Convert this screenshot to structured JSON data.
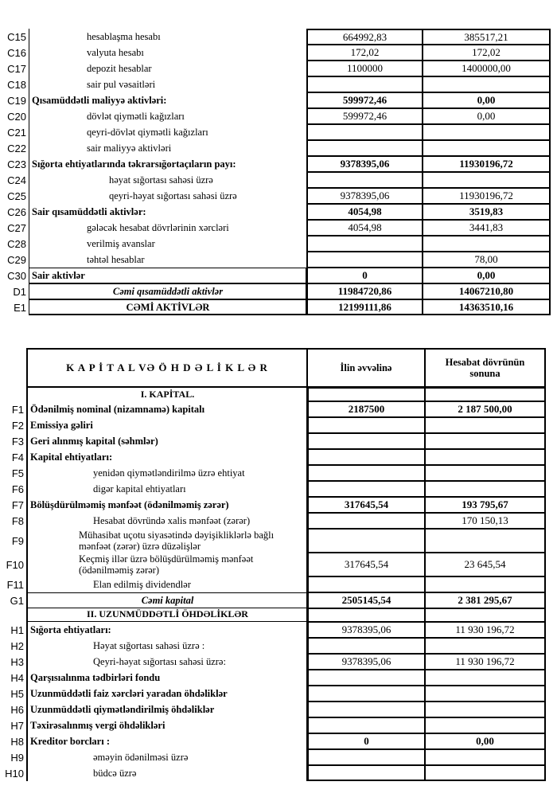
{
  "doc_type": "balance-sheet-fragment",
  "top_table": {
    "rows": [
      {
        "code": "C15",
        "label": "hesablaşma hesabı",
        "type": "sub",
        "v1": "664992,83",
        "v2": "385517,21",
        "vb": false
      },
      {
        "code": "C16",
        "label": "valyuta hesabı",
        "type": "sub",
        "v1": "172,02",
        "v2": "172,02",
        "vb": false
      },
      {
        "code": "C17",
        "label": "depozit hesablar",
        "type": "sub",
        "v1": "1100000",
        "v2": "1400000,00",
        "vb": false
      },
      {
        "code": "C18",
        "label": "sair pul vəsaitləri",
        "type": "sub",
        "v1": "",
        "v2": "",
        "vb": false
      },
      {
        "code": "C19",
        "label": "Qısamüddətli maliyyə aktivləri:",
        "type": "main",
        "v1": "599972,46",
        "v2": "0,00",
        "vb": true
      },
      {
        "code": "C20",
        "label": "dövlət qiymətli kağızları",
        "type": "sub",
        "v1": "599972,46",
        "v2": "0,00",
        "vb": false
      },
      {
        "code": "C21",
        "label": "qeyri-dövlət qiymətli kağızları",
        "type": "sub",
        "v1": "",
        "v2": "",
        "vb": false
      },
      {
        "code": "C22",
        "label": "sair maliyyə aktivləri",
        "type": "sub",
        "v1": "",
        "v2": "",
        "vb": false
      },
      {
        "code": "C23",
        "label": "Sığorta ehtiyatlarında təkrarsığortaçıların payı:",
        "type": "main",
        "v1": "9378395,06",
        "v2": "11930196,72",
        "vb": true
      },
      {
        "code": "C24",
        "label": "həyat sığortası sahəsi üzrə",
        "type": "sub2",
        "v1": "",
        "v2": "",
        "vb": false
      },
      {
        "code": "C25",
        "label": "qeyri-həyat sığortası sahəsi üzrə",
        "type": "sub2",
        "v1": "9378395,06",
        "v2": "11930196,72",
        "vb": false
      },
      {
        "code": "C26",
        "label": "Sair qısamüddətli aktivlər:",
        "type": "main",
        "v1": "4054,98",
        "v2": "3519,83",
        "vb": true
      },
      {
        "code": "C27",
        "label": "gələcək hesabat dövrlərinin xərcləri",
        "type": "sub",
        "v1": "4054,98",
        "v2": "3441,83",
        "vb": false
      },
      {
        "code": "C28",
        "label": "verilmiş avanslar",
        "type": "sub",
        "v1": "",
        "v2": "",
        "vb": false
      },
      {
        "code": "C29",
        "label": "təhtəl hesablar",
        "type": "sub",
        "v1": "",
        "v2": "78,00",
        "vb": false
      },
      {
        "code": "C30",
        "label": "Sair aktivlər",
        "type": "mainbox",
        "v1": "0",
        "v2": "0,00",
        "vb": true
      },
      {
        "code": "D1",
        "label": "Cəmi qısamüddətli aktivlər",
        "type": "totalbox",
        "v1": "11984720,86",
        "v2": "14067210,80",
        "vb": true
      },
      {
        "code": "E1",
        "label": "CƏMİ AKTİVLƏR",
        "type": "grandbox",
        "v1": "12199111,86",
        "v2": "14363510,16",
        "vb": true
      }
    ]
  },
  "bottom_table": {
    "header": {
      "title": "K A P İ T A L  VƏ  Ö H D Ə L İ K L Ə R",
      "col1": "İlin əvvəlinə",
      "col2": "Hesabat dövrünün sonuna"
    },
    "rows": [
      {
        "code": "",
        "label": "I. KAPİTAL.",
        "type": "section",
        "v1": "",
        "v2": "",
        "vb": false
      },
      {
        "code": "F1",
        "label": "Ödənilmiş nominal (nizamnamə) kapitalı",
        "type": "main",
        "v1": "2187500",
        "v2": "2 187 500,00",
        "vb": true
      },
      {
        "code": "F2",
        "label": "Emissiya gəliri",
        "type": "main",
        "v1": "",
        "v2": "",
        "vb": false
      },
      {
        "code": "F3",
        "label": "Geri alınmış kapital (səhmlər)",
        "type": "main",
        "v1": "",
        "v2": "",
        "vb": false
      },
      {
        "code": "F4",
        "label": "Kapital ehtiyatları:",
        "type": "main",
        "v1": "",
        "v2": "",
        "vb": false
      },
      {
        "code": "F5",
        "label": "yenidən qiymətləndirilmə üzrə ehtiyat",
        "type": "sub",
        "v1": "",
        "v2": "",
        "vb": false
      },
      {
        "code": "F6",
        "label": "digər kapital ehtiyatları",
        "type": "sub",
        "v1": "",
        "v2": "",
        "vb": false
      },
      {
        "code": "F7",
        "label": "Bölüşdürülməmiş mənfəət (ödənilməmiş zərər)",
        "type": "main",
        "v1": "317645,54",
        "v2": "193 795,67",
        "vb": true
      },
      {
        "code": "F8",
        "label": "Hesabat dövründə xalis mənfəət (zərər)",
        "type": "sub",
        "v1": "",
        "v2": "170 150,13",
        "vb": false
      },
      {
        "code": "F9",
        "label": "Mühasibat uçotu siyasətində dəyişikliklərlə bağlı mənfəət (zərər) üzrə düzəlişlər",
        "type": "subw",
        "v1": "",
        "v2": "",
        "vb": false
      },
      {
        "code": "F10",
        "label": "Keçmiş illər üzrə bölüşdürülməmiş mənfəət (ödənilməmiş zərər)",
        "type": "subw",
        "v1": "317645,54",
        "v2": "23 645,54",
        "vb": false
      },
      {
        "code": "F11",
        "label": "Elan edilmiş dividendlər",
        "type": "sub",
        "v1": "",
        "v2": "",
        "vb": false
      },
      {
        "code": "G1",
        "label": "Cəmi kapital",
        "type": "total",
        "v1": "2505145,54",
        "v2": "2 381 295,67",
        "vb": true
      },
      {
        "code": "",
        "label": "II. UZUNMÜDDƏTLİ ÖHDƏLİKLƏR",
        "type": "section2",
        "v1": "",
        "v2": "",
        "vb": false
      },
      {
        "code": "H1",
        "label": "Sığorta ehtiyatları:",
        "type": "main",
        "v1": "9378395,06",
        "v2": "11 930 196,72",
        "vb": false
      },
      {
        "code": "H2",
        "label": "Həyat sığortası sahəsi üzrə :",
        "type": "sub",
        "v1": "",
        "v2": "",
        "vb": false
      },
      {
        "code": "H3",
        "label": "Qeyri-həyat sığortası sahəsi üzrə:",
        "type": "sub",
        "v1": "9378395,06",
        "v2": "11 930 196,72",
        "vb": false
      },
      {
        "code": "H4",
        "label": "Qarşısıalınma tədbirləri fondu",
        "type": "main",
        "v1": "",
        "v2": "",
        "vb": false
      },
      {
        "code": "H5",
        "label": "Uzunmüddətli faiz xərcləri yaradan öhdəliklər",
        "type": "main",
        "v1": "",
        "v2": "",
        "vb": false
      },
      {
        "code": "H6",
        "label": "Uzunmüddətli qiymətləndirilmiş öhdəliklər",
        "type": "main",
        "v1": "",
        "v2": "",
        "vb": false
      },
      {
        "code": "H7",
        "label": "Təxirəsalınmış vergi öhdəlikləri",
        "type": "main",
        "v1": "",
        "v2": "",
        "vb": false
      },
      {
        "code": "H8",
        "label": "Kreditor borcları :",
        "type": "main",
        "v1": "0",
        "v2": "0,00",
        "vb": true
      },
      {
        "code": "H9",
        "label": "əməyin ödənilməsi üzrə",
        "type": "sub",
        "v1": "",
        "v2": "",
        "vb": false
      },
      {
        "code": "H10",
        "label": "büdcə üzrə",
        "type": "sub",
        "v1": "",
        "v2": "",
        "vb": false
      }
    ]
  },
  "colors": {
    "text": "#000000",
    "border": "#000000",
    "background": "#ffffff"
  }
}
